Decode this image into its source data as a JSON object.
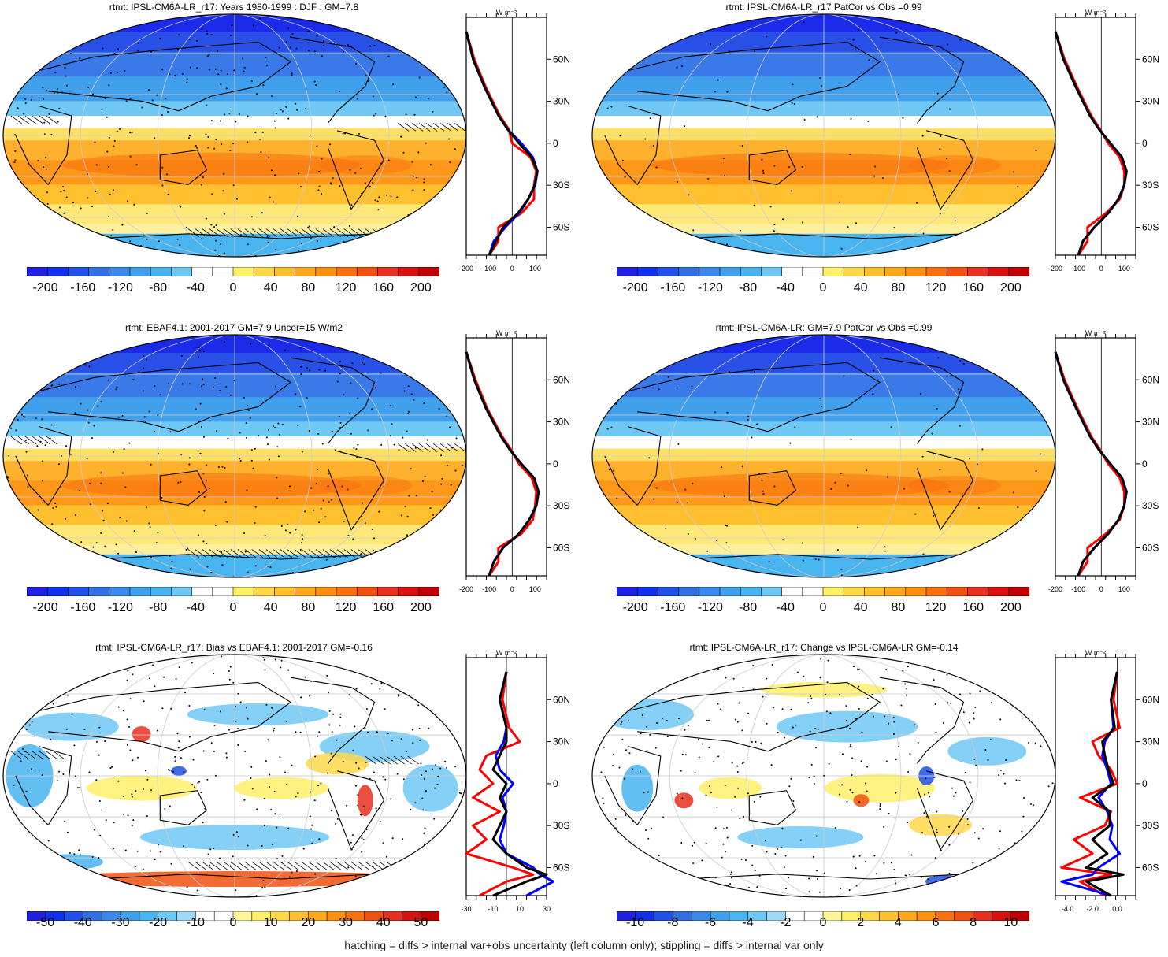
{
  "footer": "hatching = diffs > internal var+obs uncertainty (left column only); stippling = diffs > internal var only",
  "profile_axis": {
    "unit": "W m⁻²",
    "lat_ticks": [
      "60N",
      "30N",
      "0",
      "30S",
      "60S"
    ]
  },
  "colors": {
    "obs_line": "#ff0000",
    "model_line": "#0000ff",
    "mean_line": "#000000",
    "abs_scale": [
      "#2020e0",
      "#1030ee",
      "#2050e8",
      "#3070e0",
      "#3a88e8",
      "#40a0ec",
      "#48b4f0",
      "#70c8f4",
      "#ffffff",
      "#ffffff",
      "#fff06a",
      "#ffd84a",
      "#ffc030",
      "#ffa81c",
      "#ff9010",
      "#f87010",
      "#f05010",
      "#e83020",
      "#d81010",
      "#c00000"
    ],
    "diff_scale": [
      "#2020e0",
      "#1030ee",
      "#2050e8",
      "#3070e0",
      "#3a88e8",
      "#40a0ec",
      "#48b4f0",
      "#70c8f4",
      "#a0d8f8",
      "#ffffff",
      "#ffffff",
      "#fff49a",
      "#fff06a",
      "#ffd84a",
      "#ffc030",
      "#ffa81c",
      "#ff9010",
      "#f87010",
      "#f05010",
      "#e83020",
      "#d81010",
      "#c00000"
    ]
  },
  "chart_data": [
    {
      "type": "heatmap",
      "title": "rtmt: IPSL-CM6A-LR_r17: Years 1980-1999 : DJF : GM=7.8",
      "colorbar_labels": [
        "-200",
        "-160",
        "-120",
        "-80",
        "-40",
        "0",
        "40",
        "80",
        "120",
        "160",
        "200"
      ],
      "profile_ticks": [
        "-200",
        "-100",
        "0",
        "100"
      ],
      "profile_range": [
        -200,
        150
      ],
      "lat": [
        80,
        60,
        40,
        20,
        10,
        0,
        -10,
        -20,
        -30,
        -40,
        -50,
        -60,
        -70,
        -80
      ],
      "series": [
        {
          "name": "model",
          "values": [
            -200,
            -170,
            -120,
            -60,
            -20,
            40,
            90,
            110,
            100,
            70,
            30,
            -30,
            -80,
            -100
          ]
        },
        {
          "name": "obs",
          "values": [
            -200,
            -165,
            -115,
            -55,
            -15,
            0,
            80,
            105,
            95,
            95,
            40,
            -60,
            -60,
            -100
          ]
        },
        {
          "name": "mean",
          "values": [
            -200,
            -170,
            -120,
            -60,
            -20,
            30,
            85,
            110,
            98,
            70,
            25,
            -40,
            -70,
            -100
          ]
        }
      ]
    },
    {
      "type": "heatmap",
      "title": "rtmt: IPSL-CM6A-LR_r17 PatCor vs Obs =0.99",
      "colorbar_labels": [
        "-200",
        "-160",
        "-120",
        "-80",
        "-40",
        "0",
        "40",
        "80",
        "120",
        "160",
        "200"
      ],
      "profile_ticks": [
        "-200",
        "-100",
        "0",
        "100"
      ],
      "profile_range": [
        -200,
        150
      ],
      "lat": [
        80,
        60,
        40,
        20,
        10,
        0,
        -10,
        -20,
        -30,
        -40,
        -50,
        -60,
        -70,
        -80
      ],
      "series": [
        {
          "name": "model",
          "values": [
            -200,
            -165,
            -110,
            -50,
            -10,
            40,
            90,
            110,
            100,
            75,
            30,
            -30,
            -80,
            -100
          ]
        },
        {
          "name": "obs",
          "values": [
            -200,
            -160,
            -105,
            -45,
            -5,
            30,
            80,
            100,
            100,
            80,
            20,
            -60,
            -60,
            -100
          ]
        },
        {
          "name": "mean",
          "values": [
            -200,
            -165,
            -110,
            -50,
            -10,
            40,
            90,
            110,
            100,
            75,
            30,
            -30,
            -80,
            -100
          ]
        }
      ]
    },
    {
      "type": "heatmap",
      "title": "rtmt: EBAF4.1: 2001-2017 GM=7.9 Uncer=15 W/m2",
      "colorbar_labels": [
        "-200",
        "-160",
        "-120",
        "-80",
        "-40",
        "0",
        "40",
        "80",
        "120",
        "160",
        "200"
      ],
      "profile_ticks": [
        "-200",
        "-100",
        "0",
        "100"
      ],
      "profile_range": [
        -200,
        150
      ],
      "lat": [
        80,
        60,
        40,
        20,
        10,
        0,
        -10,
        -20,
        -30,
        -40,
        -50,
        -60,
        -70,
        -80
      ],
      "series": [
        {
          "name": "model",
          "values": [
            -200,
            -165,
            -115,
            -50,
            -10,
            40,
            95,
            115,
            105,
            75,
            30,
            -40,
            -80,
            -100
          ]
        },
        {
          "name": "obs",
          "values": [
            -200,
            -160,
            -110,
            -45,
            -5,
            30,
            85,
            105,
            100,
            90,
            40,
            -60,
            -60,
            -100
          ]
        },
        {
          "name": "mean",
          "values": [
            -200,
            -165,
            -115,
            -50,
            -10,
            40,
            95,
            115,
            105,
            75,
            30,
            -40,
            -80,
            -100
          ]
        }
      ]
    },
    {
      "type": "heatmap",
      "title": "rtmt: IPSL-CM6A-LR: GM=7.9 PatCor vs Obs =0.99",
      "colorbar_labels": [
        "-200",
        "-160",
        "-120",
        "-80",
        "-40",
        "0",
        "40",
        "80",
        "120",
        "160",
        "200"
      ],
      "profile_ticks": [
        "-200",
        "-100",
        "0",
        "100"
      ],
      "profile_range": [
        -200,
        150
      ],
      "lat": [
        80,
        60,
        40,
        20,
        10,
        0,
        -10,
        -20,
        -30,
        -40,
        -50,
        -60,
        -70,
        -80
      ],
      "series": [
        {
          "name": "model",
          "values": [
            -200,
            -165,
            -110,
            -50,
            -10,
            40,
            90,
            110,
            100,
            75,
            30,
            -30,
            -80,
            -100
          ]
        },
        {
          "name": "obs",
          "values": [
            -200,
            -160,
            -105,
            -45,
            -5,
            30,
            80,
            100,
            100,
            80,
            20,
            -60,
            -60,
            -100
          ]
        },
        {
          "name": "mean",
          "values": [
            -200,
            -165,
            -110,
            -50,
            -10,
            40,
            90,
            110,
            100,
            75,
            30,
            -30,
            -80,
            -100
          ]
        }
      ]
    },
    {
      "type": "heatmap",
      "title": "rtmt: IPSL-CM6A-LR_r17: Bias vs EBAF4.1: 2001-2017 GM=-0.16",
      "colorbar_labels": [
        "-50",
        "-40",
        "-30",
        "-20",
        "-10",
        "0",
        "10",
        "20",
        "30",
        "40",
        "50"
      ],
      "profile_ticks": [
        "-30",
        "-10",
        "10",
        "30"
      ],
      "profile_range": [
        -30,
        30
      ],
      "lat": [
        80,
        60,
        40,
        30,
        20,
        10,
        0,
        -10,
        -20,
        -30,
        -40,
        -50,
        -60,
        -65,
        -70,
        -80
      ],
      "series": [
        {
          "name": "model",
          "values": [
            0,
            -5,
            0,
            -2,
            -8,
            -5,
            5,
            -3,
            0,
            -2,
            -5,
            0,
            20,
            25,
            35,
            15
          ]
        },
        {
          "name": "obs",
          "values": [
            0,
            -3,
            2,
            10,
            -15,
            -20,
            -10,
            -25,
            -5,
            -25,
            -15,
            -30,
            5,
            20,
            0,
            -20
          ]
        },
        {
          "name": "mean",
          "values": [
            0,
            -5,
            0,
            0,
            -5,
            -10,
            0,
            -5,
            0,
            -5,
            -10,
            0,
            15,
            30,
            15,
            -10
          ]
        }
      ]
    },
    {
      "type": "heatmap",
      "title": "rtmt: IPSL-CM6A-LR_r17: Change vs IPSL-CM6A-LR GM=-0.14",
      "colorbar_labels": [
        "-10",
        "-8",
        "-6",
        "-4",
        "-2",
        "0",
        "2",
        "4",
        "6",
        "8",
        "10"
      ],
      "profile_ticks": [
        "-4.0",
        "-2.0",
        "0.0"
      ],
      "profile_range": [
        -5,
        1.5
      ],
      "lat": [
        80,
        60,
        40,
        30,
        20,
        10,
        0,
        -10,
        -20,
        -30,
        -40,
        -50,
        -60,
        -65,
        -70,
        -80
      ],
      "series": [
        {
          "name": "model",
          "values": [
            0,
            -0.5,
            -0.3,
            -1.0,
            -1.2,
            -0.8,
            -0.5,
            -1.5,
            -0.8,
            -0.4,
            -0.6,
            0.2,
            -1.5,
            -2.0,
            -4.5,
            -0.5
          ]
        },
        {
          "name": "obs",
          "values": [
            0,
            -0.3,
            0.2,
            -2.0,
            -1.5,
            -0.5,
            0,
            -3.0,
            -0.5,
            -1.0,
            -3.5,
            -2.0,
            -4.5,
            -0.5,
            -3.0,
            -1.0
          ]
        },
        {
          "name": "mean",
          "values": [
            0,
            -0.5,
            -0.2,
            -1.2,
            -1.0,
            -0.7,
            -0.3,
            -2.0,
            -0.6,
            -0.6,
            -2.0,
            -0.8,
            -2.5,
            0.5,
            -2.5,
            -0.5
          ]
        }
      ]
    }
  ]
}
